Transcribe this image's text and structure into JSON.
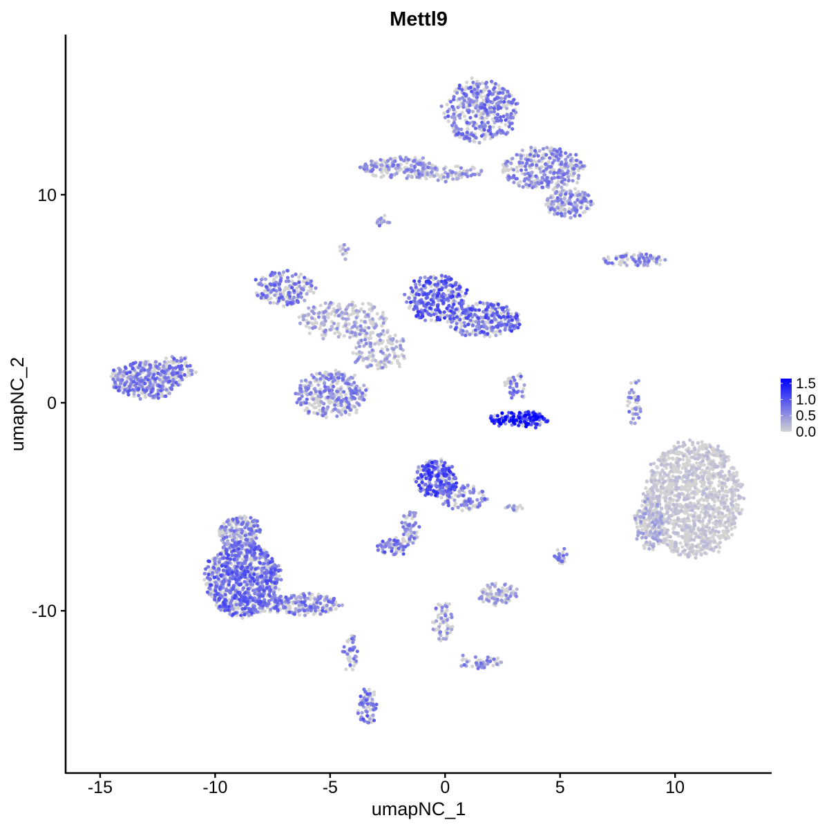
{
  "chart_data": {
    "type": "scatter",
    "title": "Mettl9",
    "xlabel": "umapNC_1",
    "ylabel": "umapNC_2",
    "xlim": [
      -16.5,
      14.2
    ],
    "ylim": [
      -17.8,
      17.7
    ],
    "xticks": [
      -15,
      -10,
      -5,
      0,
      5,
      10
    ],
    "xtick_labels": [
      "-15",
      "-10",
      "-5",
      "0",
      "5",
      "10"
    ],
    "yticks": [
      -10,
      0,
      10
    ],
    "ytick_labels": [
      "-10",
      "0",
      "10"
    ],
    "grid": false,
    "legend_position": "right",
    "colorbar": {
      "ticks": [
        0.0,
        0.5,
        1.0,
        1.5
      ],
      "tick_labels": [
        "0.0",
        "0.5",
        "1.0",
        "1.5"
      ],
      "min": 0.0,
      "max": 1.65,
      "low_color": "#d3d3d3",
      "high_color": "#0000ff"
    },
    "clusters": [
      {
        "name": "top-cluster",
        "cx": 1.5,
        "cy": 14.0,
        "rx": 1.6,
        "ry": 1.5,
        "n": 420,
        "level": 0.7
      },
      {
        "name": "top-right-arm",
        "cx": 4.3,
        "cy": 11.3,
        "rx": 1.8,
        "ry": 1.0,
        "n": 320,
        "level": 0.6
      },
      {
        "name": "top-right-tail",
        "cx": 5.4,
        "cy": 9.6,
        "rx": 1.0,
        "ry": 0.7,
        "n": 160,
        "level": 0.6
      },
      {
        "name": "top-left-arm",
        "cx": -2.0,
        "cy": 11.3,
        "rx": 1.7,
        "ry": 0.5,
        "n": 180,
        "level": 0.55
      },
      {
        "name": "top-bridge",
        "cx": 0.2,
        "cy": 11.0,
        "rx": 1.4,
        "ry": 0.3,
        "n": 80,
        "level": 0.5
      },
      {
        "name": "upper-left-blob",
        "cx": -7.0,
        "cy": 5.5,
        "rx": 1.3,
        "ry": 0.8,
        "n": 180,
        "level": 0.7
      },
      {
        "name": "center-arm",
        "cx": -4.5,
        "cy": 4.0,
        "rx": 2.0,
        "ry": 0.9,
        "n": 220,
        "level": 0.45
      },
      {
        "name": "center-right-head",
        "cx": -0.4,
        "cy": 5.0,
        "rx": 1.3,
        "ry": 1.1,
        "n": 300,
        "level": 0.9
      },
      {
        "name": "center-right-arm",
        "cx": 1.7,
        "cy": 4.0,
        "rx": 1.6,
        "ry": 0.8,
        "n": 280,
        "level": 0.85
      },
      {
        "name": "center-stem",
        "cx": -2.8,
        "cy": 2.5,
        "rx": 1.2,
        "ry": 1.0,
        "n": 140,
        "level": 0.45
      },
      {
        "name": "center-lower-blob",
        "cx": -5.0,
        "cy": 0.4,
        "rx": 1.5,
        "ry": 1.1,
        "n": 340,
        "level": 0.6
      },
      {
        "name": "far-left-cluster",
        "cx": -13.0,
        "cy": 1.1,
        "rx": 1.5,
        "ry": 0.9,
        "n": 380,
        "level": 0.7
      },
      {
        "name": "far-left-tail",
        "cx": -11.6,
        "cy": 1.7,
        "rx": 0.7,
        "ry": 0.5,
        "n": 60,
        "level": 0.7
      },
      {
        "name": "right-arc",
        "cx": 3.2,
        "cy": -0.8,
        "rx": 1.3,
        "ry": 0.35,
        "n": 140,
        "level": 1.3
      },
      {
        "name": "right-arc-top",
        "cx": 3.1,
        "cy": 0.8,
        "rx": 0.5,
        "ry": 0.6,
        "n": 40,
        "level": 0.7
      },
      {
        "name": "top-far-right",
        "cx": 8.2,
        "cy": 6.9,
        "rx": 1.4,
        "ry": 0.25,
        "n": 90,
        "level": 0.6
      },
      {
        "name": "right-stem",
        "cx": 8.2,
        "cy": 0.0,
        "rx": 0.25,
        "ry": 1.1,
        "n": 40,
        "level": 0.6
      },
      {
        "name": "big-right-cluster",
        "cx": 10.8,
        "cy": -4.6,
        "rx": 2.1,
        "ry": 2.8,
        "n": 1300,
        "level": 0.15
      },
      {
        "name": "big-right-left",
        "cx": 8.9,
        "cy": -5.8,
        "rx": 0.6,
        "ry": 1.3,
        "n": 160,
        "level": 0.35
      },
      {
        "name": "mid-lower-head",
        "cx": -0.4,
        "cy": -3.6,
        "rx": 0.9,
        "ry": 0.9,
        "n": 220,
        "level": 0.95
      },
      {
        "name": "mid-lower-arm",
        "cx": 0.8,
        "cy": -4.6,
        "rx": 1.0,
        "ry": 0.6,
        "n": 100,
        "level": 0.7
      },
      {
        "name": "mid-lower-stem",
        "cx": -1.5,
        "cy": -6.0,
        "rx": 0.4,
        "ry": 0.9,
        "n": 60,
        "level": 0.6
      },
      {
        "name": "mid-lower-foot",
        "cx": -2.3,
        "cy": -6.9,
        "rx": 0.6,
        "ry": 0.35,
        "n": 70,
        "level": 0.75
      },
      {
        "name": "bottom-left-big",
        "cx": -8.8,
        "cy": -8.5,
        "rx": 1.6,
        "ry": 1.8,
        "n": 900,
        "level": 0.8
      },
      {
        "name": "bottom-left-upper",
        "cx": -8.9,
        "cy": -6.2,
        "rx": 0.9,
        "ry": 0.8,
        "n": 180,
        "level": 0.6
      },
      {
        "name": "bottom-left-arm",
        "cx": -6.2,
        "cy": -9.7,
        "rx": 1.7,
        "ry": 0.5,
        "n": 200,
        "level": 0.7
      },
      {
        "name": "bottom-stem",
        "cx": -4.1,
        "cy": -12.0,
        "rx": 0.3,
        "ry": 1.0,
        "n": 40,
        "level": 0.65
      },
      {
        "name": "bottom-foot",
        "cx": -3.4,
        "cy": -14.6,
        "rx": 0.35,
        "ry": 0.8,
        "n": 80,
        "level": 0.75
      },
      {
        "name": "lower-mid-cluster",
        "cx": 2.3,
        "cy": -9.2,
        "rx": 0.8,
        "ry": 0.5,
        "n": 90,
        "level": 0.45
      },
      {
        "name": "lower-mid-stem",
        "cx": -0.1,
        "cy": -10.5,
        "rx": 0.4,
        "ry": 1.0,
        "n": 60,
        "level": 0.6
      },
      {
        "name": "lower-mid-arm",
        "cx": 1.5,
        "cy": -12.5,
        "rx": 1.0,
        "ry": 0.3,
        "n": 50,
        "level": 0.6
      },
      {
        "name": "small-right-group",
        "cx": 5.0,
        "cy": -7.4,
        "rx": 0.3,
        "ry": 0.35,
        "n": 25,
        "level": 0.6
      },
      {
        "name": "small-mid-group",
        "cx": 2.9,
        "cy": -5.0,
        "rx": 0.4,
        "ry": 0.15,
        "n": 12,
        "level": 0.5
      },
      {
        "name": "small-upper-mid",
        "cx": -2.7,
        "cy": 8.7,
        "rx": 0.3,
        "ry": 0.25,
        "n": 15,
        "level": 0.6
      },
      {
        "name": "small-upper-left",
        "cx": -4.4,
        "cy": 7.3,
        "rx": 0.25,
        "ry": 0.3,
        "n": 12,
        "level": 0.5
      }
    ]
  }
}
